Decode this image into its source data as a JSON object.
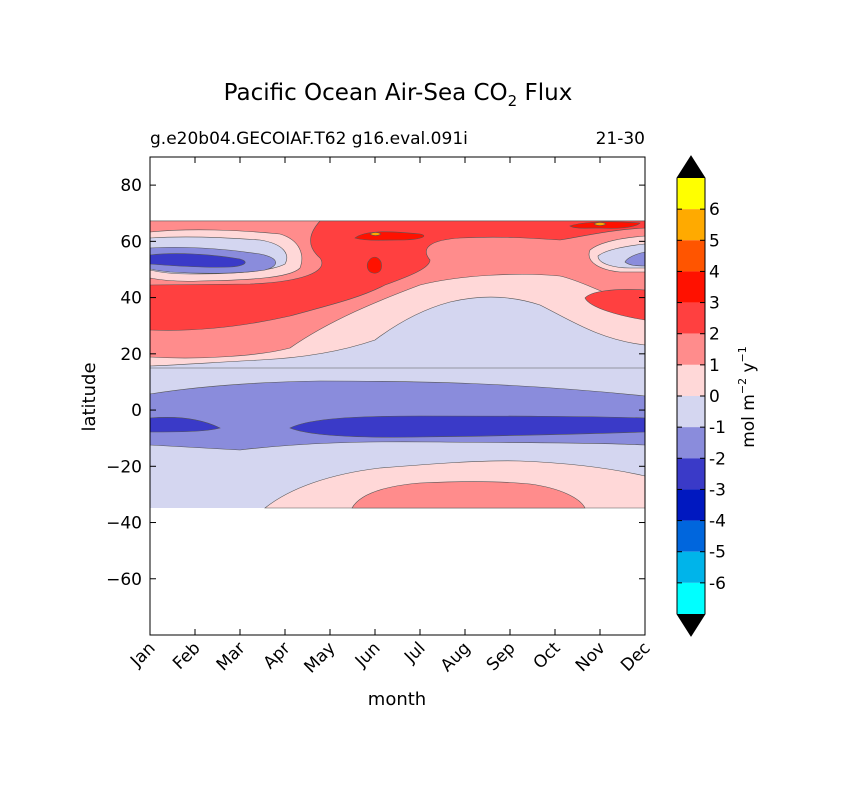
{
  "chart_data": {
    "type": "heatmap",
    "title_main": "Pacific Ocean Air-Sea CO",
    "title_sub2": "2",
    "title_tail": "Flux",
    "subtitle_left": "g.e20b04.GECOIAF.T62 g16.eval.091i",
    "subtitle_right": "21-30",
    "xlabel": "month",
    "ylabel": "latitude",
    "x_categories": [
      "Jan",
      "Feb",
      "Mar",
      "Apr",
      "May",
      "Jun",
      "Jul",
      "Aug",
      "Sep",
      "Oct",
      "Nov",
      "Dec"
    ],
    "y_ticks": [
      "80",
      "60",
      "40",
      "20",
      "0",
      "−20",
      "−40",
      "−60"
    ],
    "y_tick_values": [
      80,
      60,
      40,
      20,
      0,
      -20,
      -40,
      -60
    ],
    "ylim": [
      -80,
      90
    ],
    "colorbar": {
      "label_main": "mol m",
      "label_exp1": "−2",
      "label_mid": " y",
      "label_exp2": "−1",
      "tick_labels": [
        "6",
        "5",
        "4",
        "3",
        "2",
        "1",
        "0",
        "-1",
        "-2",
        "-3",
        "-4",
        "-5",
        "-6"
      ],
      "tick_values": [
        6,
        5,
        4,
        3,
        2,
        1,
        0,
        -1,
        -2,
        -3,
        -4,
        -5,
        -6
      ],
      "level_colors": [
        "#ffff00",
        "#ffaa00",
        "#ff5500",
        "#ff1100",
        "#ff4040",
        "#ff8c8c",
        "#ffd8d8",
        "#d4d6f0",
        "#8a8cdc",
        "#3a3ac8",
        "#0018c0",
        "#0066dd",
        "#00b4ea",
        "#00ffff"
      ],
      "extend_color": "#000000"
    },
    "data_extent": {
      "lat_north": 67,
      "lat_south": -34
    },
    "bands": [
      {
        "lat_range": [
          58,
          67
        ],
        "value_range": [
          2,
          3
        ],
        "note": "Jun-Nov"
      },
      {
        "lat_range": [
          30,
          45
        ],
        "value_range": [
          2,
          3
        ],
        "note": "Jan-Jul"
      },
      {
        "lat_range": [
          48,
          56
        ],
        "value_range": [
          -2,
          -1
        ],
        "note": "Jan-Apr"
      },
      {
        "lat_range": [
          15,
          45
        ],
        "value_range": [
          0,
          1
        ]
      },
      {
        "lat_range": [
          5,
          38
        ],
        "value_range": [
          -1,
          0
        ],
        "note": "Jun-Dec"
      },
      {
        "lat_range": [
          -12,
          5
        ],
        "value_range": [
          -2,
          -1
        ]
      },
      {
        "lat_range": [
          -8,
          -3
        ],
        "value_range": [
          -3,
          -2
        ]
      },
      {
        "lat_range": [
          -34,
          -13
        ],
        "value_range": [
          -1,
          0
        ]
      },
      {
        "lat_range": [
          -34,
          -22
        ],
        "value_range": [
          1,
          2
        ],
        "note": "Jun-Nov"
      }
    ]
  }
}
